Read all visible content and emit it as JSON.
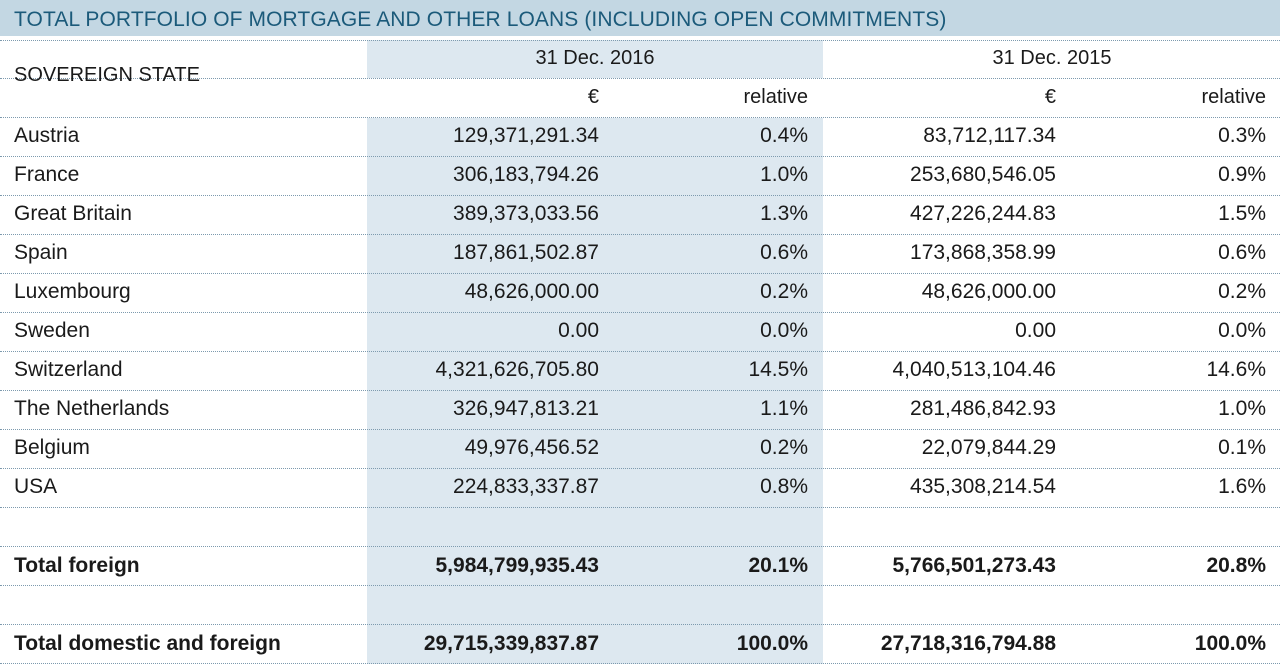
{
  "title": "TOTAL PORTFOLIO OF MORTGAGE AND OTHER LOANS (INCLUDING OPEN COMMITMENTS)",
  "header": {
    "state_label": "SOVEREIGN STATE",
    "period_1": "31 Dec. 2016",
    "period_2": "31 Dec. 2015",
    "currency": "€",
    "relative": "relative"
  },
  "rows": [
    {
      "state": "Austria",
      "v2016": "129,371,291.34",
      "r2016": "0.4%",
      "v2015": "83,712,117.34",
      "r2015": "0.3%"
    },
    {
      "state": "France",
      "v2016": "306,183,794.26",
      "r2016": "1.0%",
      "v2015": "253,680,546.05",
      "r2015": "0.9%"
    },
    {
      "state": "Great Britain",
      "v2016": "389,373,033.56",
      "r2016": "1.3%",
      "v2015": "427,226,244.83",
      "r2015": "1.5%"
    },
    {
      "state": "Spain",
      "v2016": "187,861,502.87",
      "r2016": "0.6%",
      "v2015": "173,868,358.99",
      "r2015": "0.6%"
    },
    {
      "state": "Luxembourg",
      "v2016": "48,626,000.00",
      "r2016": "0.2%",
      "v2015": "48,626,000.00",
      "r2015": "0.2%"
    },
    {
      "state": "Sweden",
      "v2016": "0.00",
      "r2016": "0.0%",
      "v2015": "0.00",
      "r2015": "0.0%"
    },
    {
      "state": "Switzerland",
      "v2016": "4,321,626,705.80",
      "r2016": "14.5%",
      "v2015": "4,040,513,104.46",
      "r2015": "14.6%"
    },
    {
      "state": "The Netherlands",
      "v2016": "326,947,813.21",
      "r2016": "1.1%",
      "v2015": "281,486,842.93",
      "r2015": "1.0%"
    },
    {
      "state": "Belgium",
      "v2016": "49,976,456.52",
      "r2016": "0.2%",
      "v2015": "22,079,844.29",
      "r2015": "0.1%"
    },
    {
      "state": "USA",
      "v2016": "224,833,337.87",
      "r2016": "0.8%",
      "v2015": "435,308,214.54",
      "r2015": "1.6%"
    }
  ],
  "total_foreign": {
    "state": "Total foreign",
    "v2016": "5,984,799,935.43",
    "r2016": "20.1%",
    "v2015": "5,766,501,273.43",
    "r2015": "20.8%"
  },
  "total_all": {
    "state": "Total domestic and foreign",
    "v2016": "29,715,339,837.87",
    "r2016": "100.0%",
    "v2015": "27,718,316,794.88",
    "r2015": "100.0%"
  },
  "colors": {
    "title_bg": "#c3d7e3",
    "title_text": "#1b5a7a",
    "shade": "#dde8f0",
    "rule": "#7d9aae"
  }
}
